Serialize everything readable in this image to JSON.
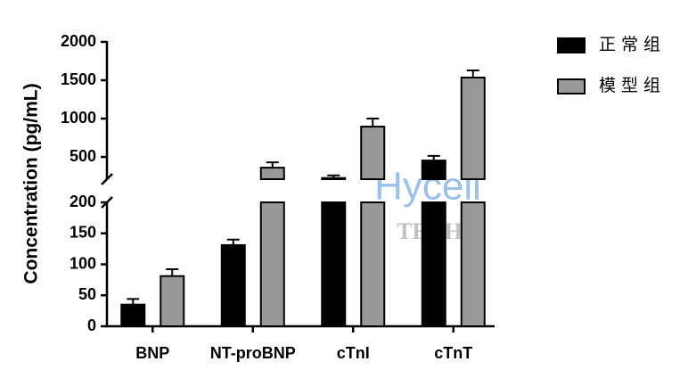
{
  "chart_data": {
    "type": "bar",
    "y_label": "Concentration (pg/mL)",
    "categories": [
      "BNP",
      "NT-proBNP",
      "cTnI",
      "cTnT"
    ],
    "series": [
      {
        "name": "正常组",
        "color": "#000000",
        "values": [
          35,
          131,
          225,
          453
        ],
        "errors": [
          9,
          9,
          35,
          60
        ]
      },
      {
        "name": "模型组",
        "color": "#999999",
        "values": [
          81,
          360,
          895,
          1535
        ],
        "errors": [
          11,
          70,
          105,
          93
        ]
      }
    ],
    "ylim": [
      0,
      2000
    ],
    "axis_break": [
      200,
      210
    ],
    "yticks": [
      0,
      50,
      100,
      150,
      200,
      500,
      1000,
      1500,
      2000
    ],
    "legend": "top-right",
    "watermark": [
      "Hycell",
      "TECH"
    ]
  }
}
